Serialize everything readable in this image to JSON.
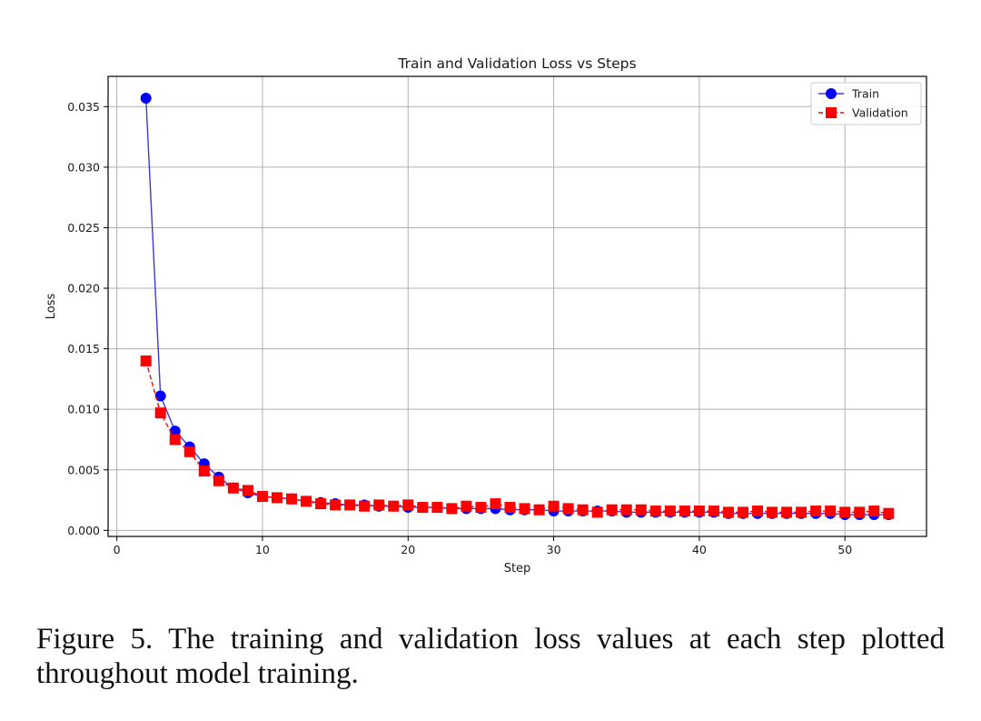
{
  "chart_data": {
    "type": "line",
    "title": "Train and Validation Loss vs Steps",
    "xlabel": "Step",
    "ylabel": "Loss",
    "xlim": [
      -0.6,
      55.6
    ],
    "ylim": [
      -0.0005,
      0.0375
    ],
    "xticks": [
      0,
      10,
      20,
      30,
      40,
      50
    ],
    "xtick_labels": [
      "0",
      "10",
      "20",
      "30",
      "40",
      "50"
    ],
    "yticks": [
      0.0,
      0.005,
      0.01,
      0.015,
      0.02,
      0.025,
      0.03,
      0.035
    ],
    "ytick_labels": [
      "0.000",
      "0.005",
      "0.010",
      "0.015",
      "0.020",
      "0.025",
      "0.030",
      "0.035"
    ],
    "grid": true,
    "legend_position": "top-right",
    "x": [
      2,
      3,
      4,
      5,
      6,
      7,
      8,
      9,
      10,
      11,
      12,
      13,
      14,
      15,
      16,
      17,
      18,
      19,
      20,
      21,
      22,
      23,
      24,
      25,
      26,
      27,
      28,
      29,
      30,
      31,
      32,
      33,
      34,
      35,
      36,
      37,
      38,
      39,
      40,
      41,
      42,
      43,
      44,
      45,
      46,
      47,
      48,
      49,
      50,
      51,
      52,
      53
    ],
    "series": [
      {
        "name": "Train",
        "color": "#0000ff",
        "line_color": "#3b3bdb",
        "marker": "circle",
        "linestyle": "solid",
        "values": [
          0.0357,
          0.0111,
          0.0082,
          0.0069,
          0.0055,
          0.0044,
          0.0035,
          0.0031,
          0.0028,
          0.0027,
          0.0026,
          0.0024,
          0.0023,
          0.0022,
          0.0021,
          0.0021,
          0.002,
          0.002,
          0.0019,
          0.0019,
          0.0019,
          0.0018,
          0.0018,
          0.0018,
          0.0018,
          0.0017,
          0.0017,
          0.0017,
          0.0016,
          0.0016,
          0.0016,
          0.0016,
          0.0016,
          0.0015,
          0.0015,
          0.0015,
          0.0015,
          0.0015,
          0.0015,
          0.0015,
          0.0014,
          0.0014,
          0.0014,
          0.0014,
          0.0014,
          0.0014,
          0.0014,
          0.0014,
          0.0013,
          0.0013,
          0.0013,
          0.0013
        ]
      },
      {
        "name": "Validation",
        "color": "#ff0000",
        "line_color": "#ff0000",
        "marker": "square",
        "linestyle": "dashed",
        "values": [
          0.014,
          0.0097,
          0.0075,
          0.0065,
          0.0049,
          0.0041,
          0.0035,
          0.0033,
          0.0028,
          0.0027,
          0.0026,
          0.0024,
          0.0022,
          0.0021,
          0.0021,
          0.002,
          0.0021,
          0.002,
          0.0021,
          0.0019,
          0.0019,
          0.0018,
          0.002,
          0.0019,
          0.0022,
          0.0019,
          0.0018,
          0.0017,
          0.002,
          0.0018,
          0.0017,
          0.0015,
          0.0017,
          0.0017,
          0.0017,
          0.0016,
          0.0016,
          0.0016,
          0.0016,
          0.0016,
          0.0015,
          0.0015,
          0.0016,
          0.0015,
          0.0015,
          0.0015,
          0.0016,
          0.0016,
          0.0015,
          0.0015,
          0.0016,
          0.0014
        ]
      }
    ]
  },
  "caption": "Figure 5. The training and validation loss values at each step plotted throughout model training."
}
